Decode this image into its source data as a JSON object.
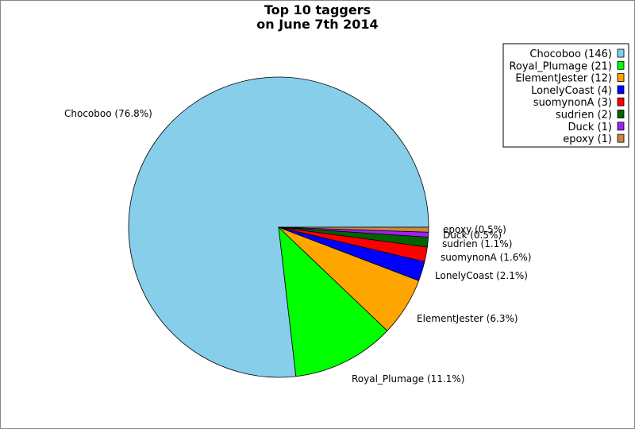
{
  "chart_data": {
    "type": "pie",
    "title_line1": "Top 10 taggers",
    "title_line2": "on June 7th 2014",
    "slices": [
      {
        "name": "Chocoboo",
        "count": 146,
        "percent_label": "76.8%",
        "color": "#87ceeb"
      },
      {
        "name": "Royal_Plumage",
        "count": 21,
        "percent_label": "11.1%",
        "color": "#00ff00"
      },
      {
        "name": "ElementJester",
        "count": 12,
        "percent_label": "6.3%",
        "color": "#ffa500"
      },
      {
        "name": "LonelyCoast",
        "count": 4,
        "percent_label": "2.1%",
        "color": "#0000ff"
      },
      {
        "name": "suomynonA",
        "count": 3,
        "percent_label": "1.6%",
        "color": "#ff0000"
      },
      {
        "name": "sudrien",
        "count": 2,
        "percent_label": "1.1%",
        "color": "#006400"
      },
      {
        "name": "Duck",
        "count": 1,
        "percent_label": "0.5%",
        "color": "#a020f0"
      },
      {
        "name": "epoxy",
        "count": 1,
        "percent_label": "0.5%",
        "color": "#cd853f"
      }
    ],
    "legend_position": "top-right"
  }
}
